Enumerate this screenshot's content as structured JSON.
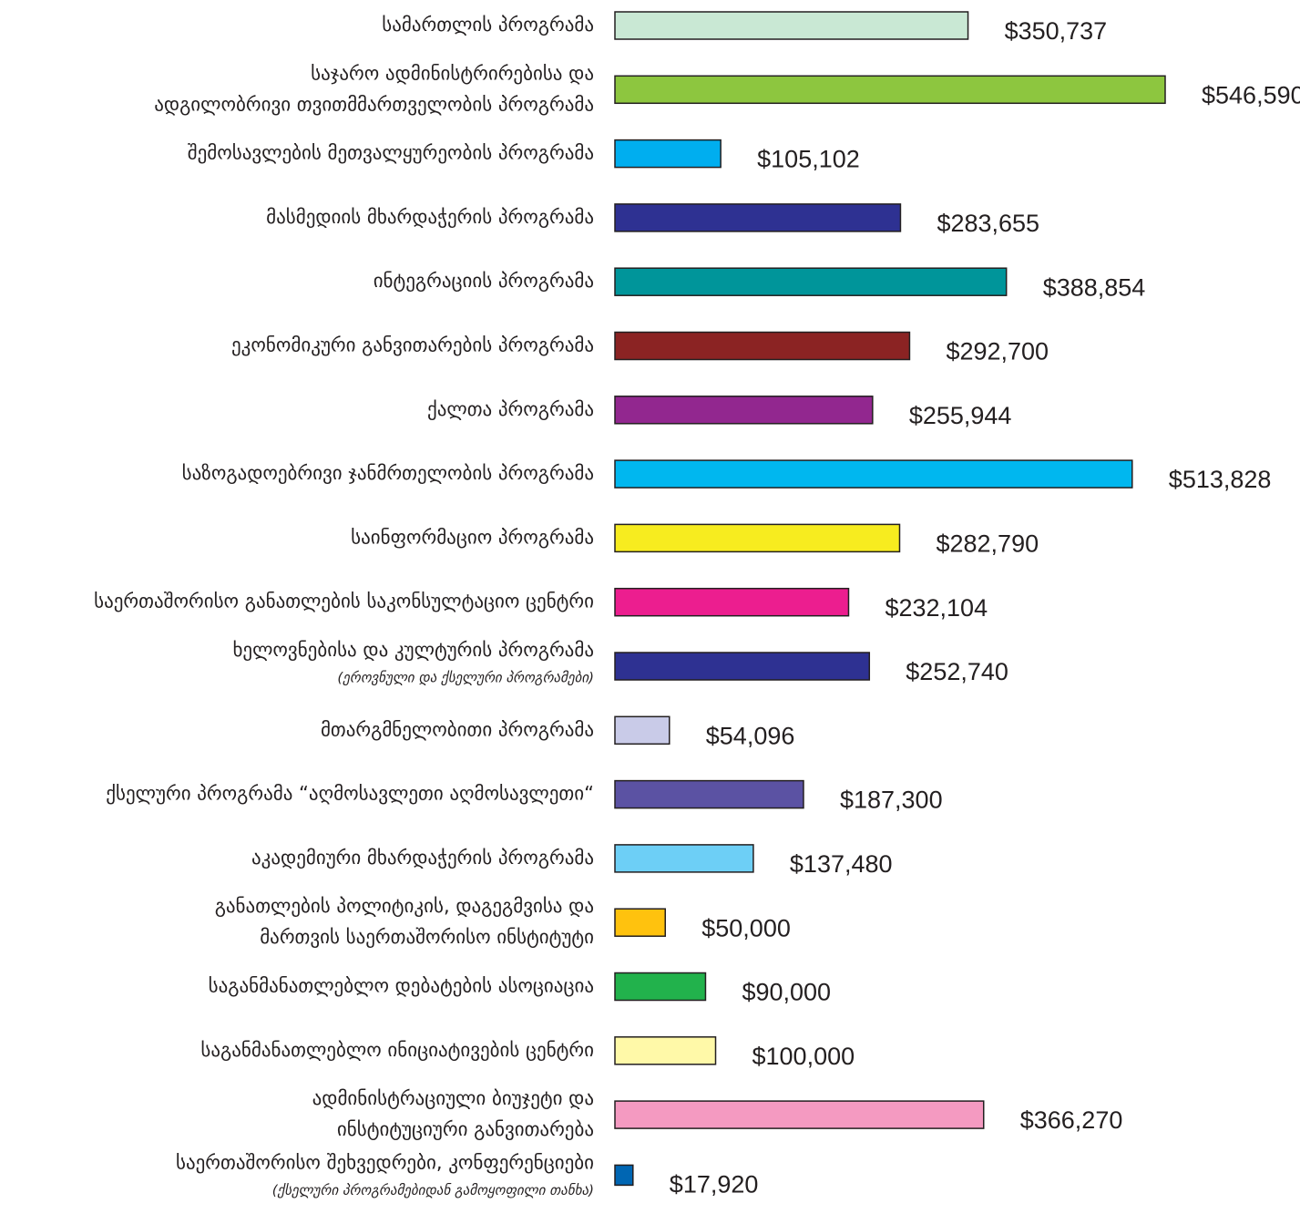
{
  "chart_data": {
    "type": "bar",
    "orientation": "horizontal",
    "categories": [
      [
        "სამართლის პროგრამა"
      ],
      [
        "საჯარო ადმინისტრირებისა და",
        "ადგილობრივი თვითმმართველობის პროგრამა"
      ],
      [
        "შემოსავლების მეთვალყურეობის პროგრამა"
      ],
      [
        "მასმედიის მხარდაჭერის პროგრამა"
      ],
      [
        "ინტეგრაციის პროგრამა"
      ],
      [
        "ეკონომიკური განვითარების პროგრამა"
      ],
      [
        "ქალთა პროგრამა"
      ],
      [
        "საზოგადოებრივი ჯანმრთელობის პროგრამა"
      ],
      [
        "საინფორმაციო პროგრამა"
      ],
      [
        "საერთაშორისო განათლების საკონსულტაციო ცენტრი"
      ],
      [
        "ხელოვნებისა და კულტურის პროგრამა"
      ],
      [
        "მთარგმნელობითი პროგრამა"
      ],
      [
        "ქსელური პროგრამა “აღმოსავლეთი აღმოსავლეთი“"
      ],
      [
        "აკადემიური მხარდაჭერის პროგრამა"
      ],
      [
        "განათლების პოლიტიკის, დაგეგმვისა და",
        "მართვის საერთაშორისო ინსტიტუტი"
      ],
      [
        "საგანმანათლებლო დებატების ასოციაცია"
      ],
      [
        "საგანმანათლებლო ინიციატივების ცენტრი"
      ],
      [
        "ადმინისტრაციული ბიუჯეტი და",
        "ინსტიტუციური განვითარება"
      ],
      [
        "საერთაშორისო შეხვედრები, კონფერენციები"
      ]
    ],
    "category_notes": [
      null,
      null,
      null,
      null,
      null,
      null,
      null,
      null,
      null,
      null,
      "(ეროვნული და ქსელური პროგრამები)",
      null,
      null,
      null,
      null,
      null,
      null,
      null,
      "(ქსელური პროგრამებიდან გამოყოფილი თანხა)"
    ],
    "values": [
      350737,
      546590,
      105102,
      283655,
      388854,
      292700,
      255944,
      513828,
      282790,
      232104,
      252740,
      54096,
      187300,
      137480,
      50000,
      90000,
      100000,
      366270,
      17920
    ],
    "value_labels": [
      "$350,737",
      "$546,590",
      "$105,102",
      "$283,655",
      "$388,854",
      "$292,700",
      "$255,944",
      "$513,828",
      "$282,790",
      "$232,104",
      "$252,740",
      "$54,096",
      "$187,300",
      "$137,480",
      "$50,000",
      "$90,000",
      "$100,000",
      "$366,270",
      "$17,920"
    ],
    "colors": [
      "#c9e8d4",
      "#8dc63f",
      "#00aeef",
      "#2e3192",
      "#00959a",
      "#8b2323",
      "#92278f",
      "#00b7ef",
      "#f7ec1f",
      "#ec1e8f",
      "#2e3192",
      "#c9cbe8",
      "#5b52a3",
      "#6dcff6",
      "#ffc20e",
      "#22b24c",
      "#fff9a8",
      "#f49ac1",
      "#0066b3"
    ]
  }
}
